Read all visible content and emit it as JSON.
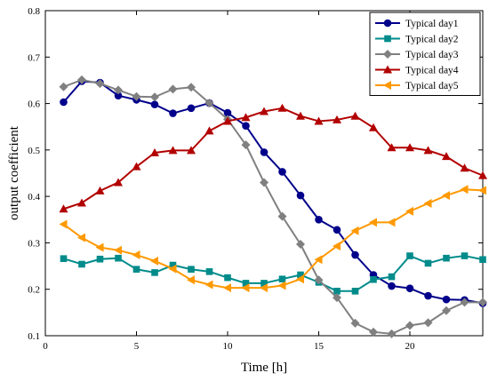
{
  "chart_data": {
    "type": "line",
    "xlabel": "Time [h]",
    "ylabel": "output coefficient",
    "xlim": [
      0,
      24
    ],
    "ylim": [
      0.1,
      0.8
    ],
    "xticks": [
      0,
      5,
      10,
      15,
      20
    ],
    "yticks": [
      0.1,
      0.2,
      0.3,
      0.4,
      0.5,
      0.6,
      0.7,
      0.8
    ],
    "legend_position": "top-right",
    "grid": false,
    "x": [
      1,
      2,
      3,
      4,
      5,
      6,
      7,
      8,
      9,
      10,
      11,
      12,
      13,
      14,
      15,
      16,
      17,
      18,
      19,
      20,
      21,
      22,
      23,
      24
    ],
    "series": [
      {
        "name": "Typical day1",
        "color": "#00008b",
        "marker": "circle",
        "values": [
          0.603,
          0.648,
          0.645,
          0.617,
          0.608,
          0.598,
          0.579,
          0.59,
          0.601,
          0.58,
          0.552,
          0.495,
          0.453,
          0.402,
          0.35,
          0.328,
          0.274,
          0.231,
          0.207,
          0.202,
          0.186,
          0.178,
          0.177,
          0.17
        ]
      },
      {
        "name": "Typical day2",
        "color": "#008b8b",
        "marker": "square",
        "values": [
          0.266,
          0.254,
          0.265,
          0.267,
          0.243,
          0.236,
          0.252,
          0.243,
          0.238,
          0.225,
          0.213,
          0.213,
          0.222,
          0.231,
          0.215,
          0.196,
          0.196,
          0.221,
          0.227,
          0.272,
          0.256,
          0.267,
          0.272,
          0.264
        ]
      },
      {
        "name": "Typical day3",
        "color": "#808080",
        "marker": "diamond",
        "values": [
          0.636,
          0.651,
          0.643,
          0.629,
          0.615,
          0.614,
          0.631,
          0.635,
          0.601,
          0.566,
          0.511,
          0.43,
          0.357,
          0.297,
          0.22,
          0.182,
          0.127,
          0.108,
          0.104,
          0.122,
          0.128,
          0.154,
          0.172,
          0.172
        ]
      },
      {
        "name": "Typical day4",
        "color": "#b20000",
        "marker": "triangle-up",
        "values": [
          0.373,
          0.386,
          0.412,
          0.43,
          0.464,
          0.494,
          0.499,
          0.499,
          0.541,
          0.562,
          0.57,
          0.583,
          0.59,
          0.573,
          0.562,
          0.565,
          0.573,
          0.548,
          0.505,
          0.505,
          0.499,
          0.486,
          0.461,
          0.445
        ]
      },
      {
        "name": "Typical day5",
        "color": "#ff9900",
        "marker": "triangle-left",
        "values": [
          0.34,
          0.311,
          0.29,
          0.284,
          0.274,
          0.261,
          0.244,
          0.22,
          0.21,
          0.203,
          0.203,
          0.203,
          0.208,
          0.222,
          0.264,
          0.293,
          0.326,
          0.344,
          0.344,
          0.368,
          0.385,
          0.402,
          0.415,
          0.413
        ]
      }
    ]
  }
}
